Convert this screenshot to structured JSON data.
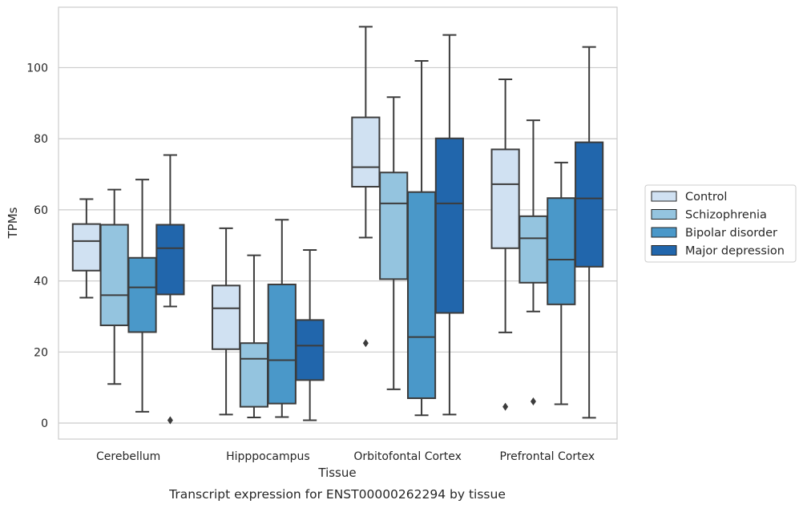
{
  "chart_data": {
    "type": "boxplot",
    "title": "",
    "caption": "Transcript expression for ENST00000262294 by tissue",
    "xlabel": "Tissue",
    "ylabel": "TPMs",
    "ylim": [
      -4.5,
      117
    ],
    "yticks": [
      0,
      20,
      40,
      60,
      80,
      100
    ],
    "grid": "horizontal",
    "legend_position": "right",
    "categories": [
      "Cerebellum",
      "Hipppocampus",
      "Orbitofontal Cortex",
      "Prefrontal Cortex"
    ],
    "series": [
      {
        "name": "Control",
        "color": "#d0e1f2",
        "boxes": [
          {
            "whisker_low": 35.3,
            "q1": 42.9,
            "median": 51.2,
            "q3": 56.0,
            "whisker_high": 63.0,
            "outliers": []
          },
          {
            "whisker_low": 2.4,
            "q1": 20.8,
            "median": 32.3,
            "q3": 38.7,
            "whisker_high": 54.8,
            "outliers": []
          },
          {
            "whisker_low": 52.2,
            "q1": 66.5,
            "median": 72.0,
            "q3": 86.0,
            "whisker_high": 111.5,
            "outliers": [
              22.5
            ]
          },
          {
            "whisker_low": 25.5,
            "q1": 49.2,
            "median": 67.2,
            "q3": 77.0,
            "whisker_high": 96.7,
            "outliers": [
              4.6
            ]
          }
        ]
      },
      {
        "name": "Schizophrenia",
        "color": "#94c4df",
        "boxes": [
          {
            "whisker_low": 11.0,
            "q1": 27.5,
            "median": 36.0,
            "q3": 55.8,
            "whisker_high": 65.7,
            "outliers": []
          },
          {
            "whisker_low": 1.6,
            "q1": 4.6,
            "median": 18.1,
            "q3": 22.5,
            "whisker_high": 47.2,
            "outliers": []
          },
          {
            "whisker_low": 9.5,
            "q1": 40.5,
            "median": 61.8,
            "q3": 70.5,
            "whisker_high": 91.7,
            "outliers": []
          },
          {
            "whisker_low": 31.4,
            "q1": 39.5,
            "median": 52.0,
            "q3": 58.2,
            "whisker_high": 85.2,
            "outliers": [
              6.1
            ]
          }
        ]
      },
      {
        "name": "Bipolar disorder",
        "color": "#4a98c9",
        "boxes": [
          {
            "whisker_low": 3.2,
            "q1": 25.6,
            "median": 38.2,
            "q3": 46.5,
            "whisker_high": 68.5,
            "outliers": []
          },
          {
            "whisker_low": 1.7,
            "q1": 5.5,
            "median": 17.7,
            "q3": 39.0,
            "whisker_high": 57.2,
            "outliers": []
          },
          {
            "whisker_low": 2.2,
            "q1": 7.0,
            "median": 24.2,
            "q3": 65.0,
            "whisker_high": 101.9,
            "outliers": []
          },
          {
            "whisker_low": 5.3,
            "q1": 33.4,
            "median": 46.0,
            "q3": 63.3,
            "whisker_high": 73.3,
            "outliers": []
          }
        ]
      },
      {
        "name": "Major depression",
        "color": "#2166ac",
        "boxes": [
          {
            "whisker_low": 32.8,
            "q1": 36.2,
            "median": 49.2,
            "q3": 55.8,
            "whisker_high": 75.4,
            "outliers": [
              0.8
            ]
          },
          {
            "whisker_low": 0.8,
            "q1": 12.1,
            "median": 21.8,
            "q3": 29.0,
            "whisker_high": 48.7,
            "outliers": []
          },
          {
            "whisker_low": 2.4,
            "q1": 31.0,
            "median": 61.8,
            "q3": 80.1,
            "whisker_high": 109.2,
            "outliers": []
          },
          {
            "whisker_low": 1.5,
            "q1": 44.0,
            "median": 63.2,
            "q3": 79.0,
            "whisker_high": 105.8,
            "outliers": []
          }
        ]
      }
    ]
  }
}
